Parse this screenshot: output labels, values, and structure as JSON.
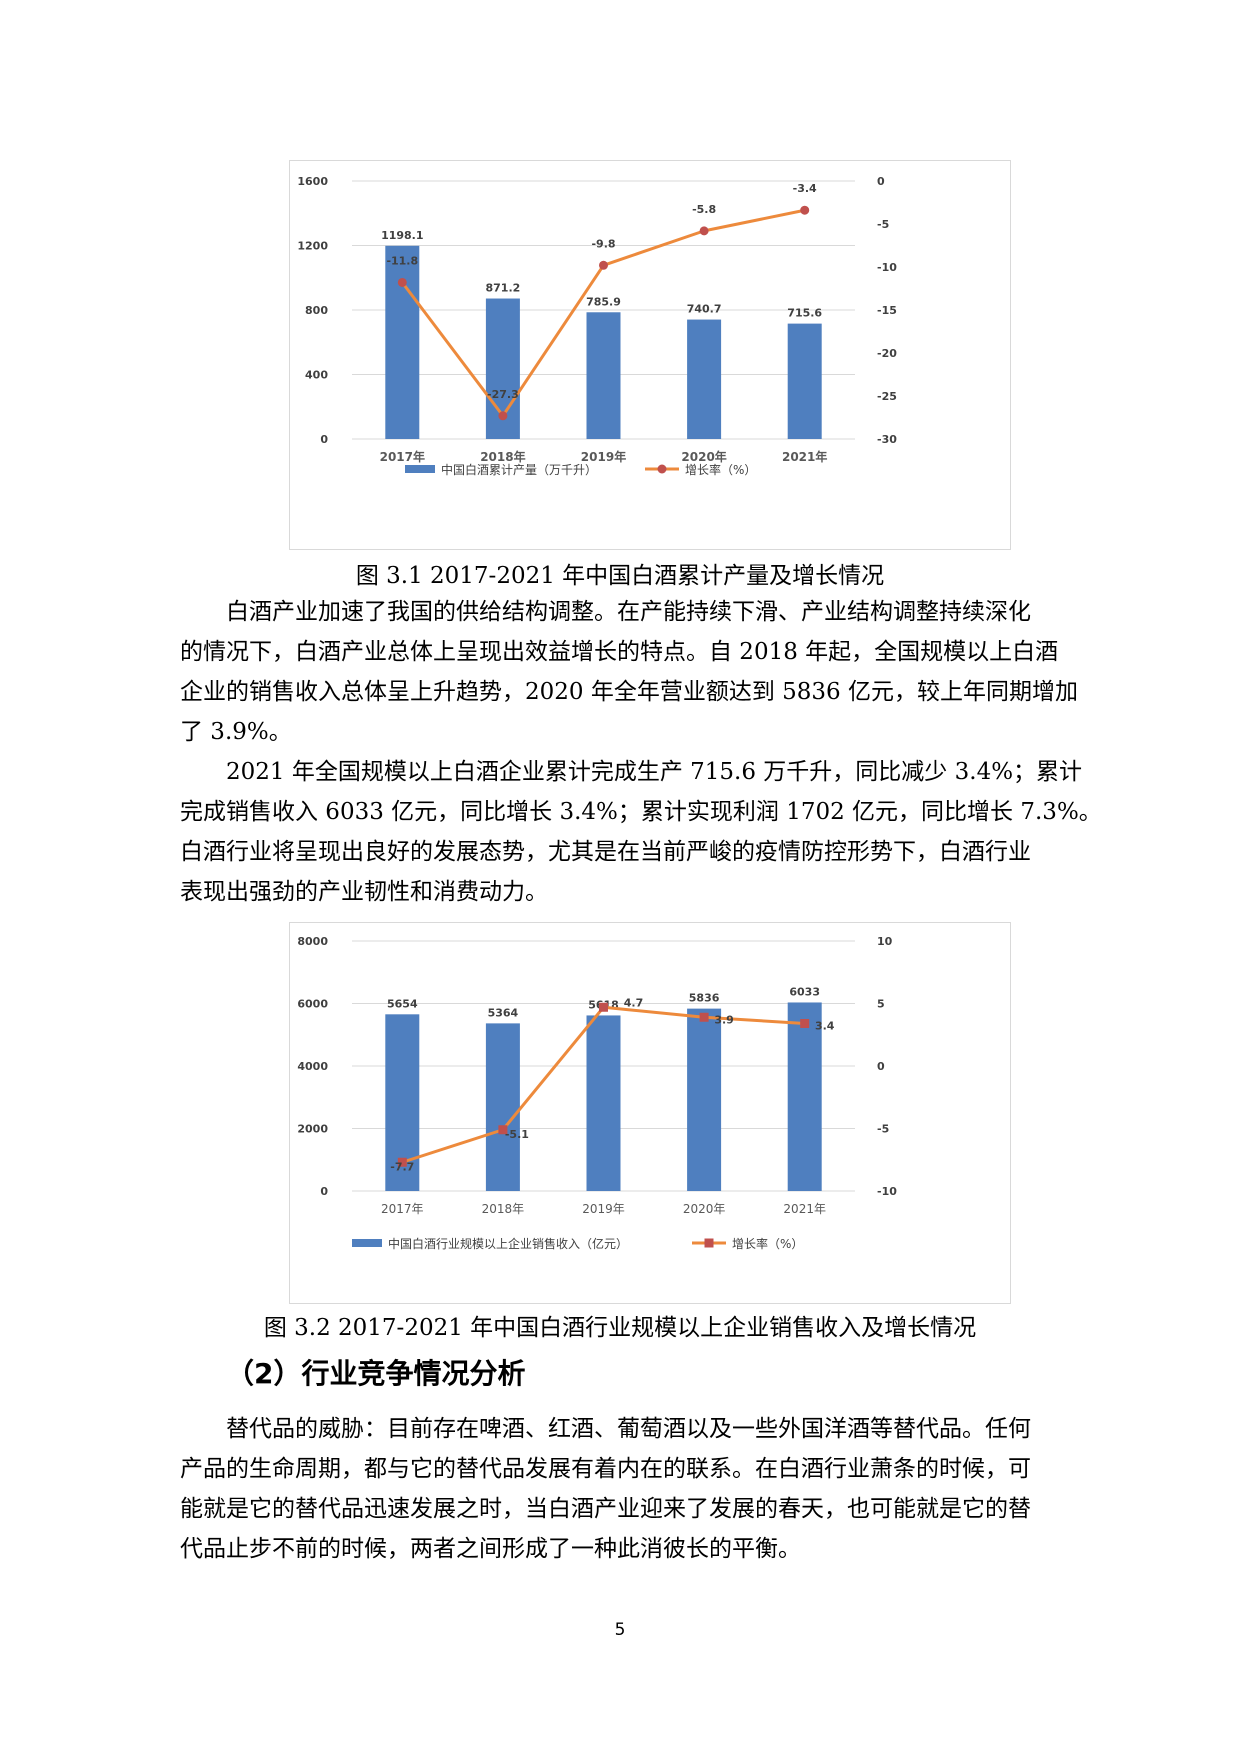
{
  "figure1": {
    "caption": "图 3.1  2017-2021 年中国白酒累计产量及增长情况",
    "chart_data": {
      "type": "bar",
      "categories": [
        "2017年",
        "2018年",
        "2019年",
        "2020年",
        "2021年"
      ],
      "series": [
        {
          "name": "中国白酒累计产量（万千升）",
          "type": "bar",
          "axis": "left",
          "values": [
            1198.1,
            871.2,
            785.9,
            740.7,
            715.6
          ],
          "color": "#4f7fbf"
        },
        {
          "name": "增长率（%）",
          "type": "line",
          "axis": "right",
          "values": [
            -11.8,
            -27.3,
            -9.8,
            -5.8,
            -3.4
          ],
          "color": "#ed8a3c",
          "marker_color": "#c0504d"
        }
      ],
      "y_left": {
        "range": [
          0,
          1600
        ],
        "ticks": [
          0,
          400,
          800,
          1200,
          1600
        ]
      },
      "y_right": {
        "range": [
          -30,
          0
        ],
        "ticks": [
          -30,
          -25,
          -20,
          -15,
          -10,
          -5,
          0
        ]
      },
      "legend_position": "bottom",
      "grid": true
    }
  },
  "paragraph1": {
    "lines": [
      "白酒产业加速了我国的供给结构调整。在产能持续下滑、产业结构调整持续深化",
      "的情况下，白酒产业总体上呈现出效益增长的特点。自 2018 年起，全国规模以上白酒",
      "企业的销售收入总体呈上升趋势，2020 年全年营业额达到 5836 亿元，较上年同期增加",
      "了 3.9%。"
    ]
  },
  "paragraph2": {
    "lines": [
      "2021 年全国规模以上白酒企业累计完成生产 715.6 万千升，同比减少 3.4%；累计",
      "完成销售收入 6033 亿元，同比增长 3.4%；累计实现利润 1702 亿元，同比增长 7.3%。",
      "白酒行业将呈现出良好的发展态势，尤其是在当前严峻的疫情防控形势下，白酒行业",
      "表现出强劲的产业韧性和消费动力。"
    ]
  },
  "figure2": {
    "caption": "图 3.2  2017-2021 年中国白酒行业规模以上企业销售收入及增长情况",
    "chart_data": {
      "type": "bar",
      "categories": [
        "2017年",
        "2018年",
        "2019年",
        "2020年",
        "2021年"
      ],
      "series": [
        {
          "name": "中国白酒行业规模以上企业销售收入（亿元）",
          "type": "bar",
          "axis": "left",
          "values": [
            5654,
            5364,
            5618,
            5836,
            6033
          ],
          "color": "#4f7fbf"
        },
        {
          "name": "增长率（%）",
          "type": "line",
          "axis": "right",
          "values": [
            -7.7,
            -5.1,
            4.7,
            3.9,
            3.4
          ],
          "color": "#ed8a3c",
          "marker_color": "#c0504d"
        }
      ],
      "y_left": {
        "range": [
          0,
          8000
        ],
        "ticks": [
          0,
          2000,
          4000,
          6000,
          8000
        ]
      },
      "y_right": {
        "range": [
          -10,
          10
        ],
        "ticks": [
          -10,
          -5,
          0,
          5,
          10
        ]
      },
      "legend_position": "bottom",
      "grid": true
    }
  },
  "section": {
    "heading": "（2）行业竞争情况分析"
  },
  "paragraph3": {
    "lines": [
      "替代品的威胁：目前存在啤酒、红酒、葡萄酒以及一些外国洋酒等替代品。任何",
      "产品的生命周期，都与它的替代品发展有着内在的联系。在白酒行业萧条的时候，可",
      "能就是它的替代品迅速发展之时，当白酒产业迎来了发展的春天，也可能就是它的替",
      "代品止步不前的时候，两者之间形成了一种此消彼长的平衡。"
    ]
  },
  "page_number": "5"
}
